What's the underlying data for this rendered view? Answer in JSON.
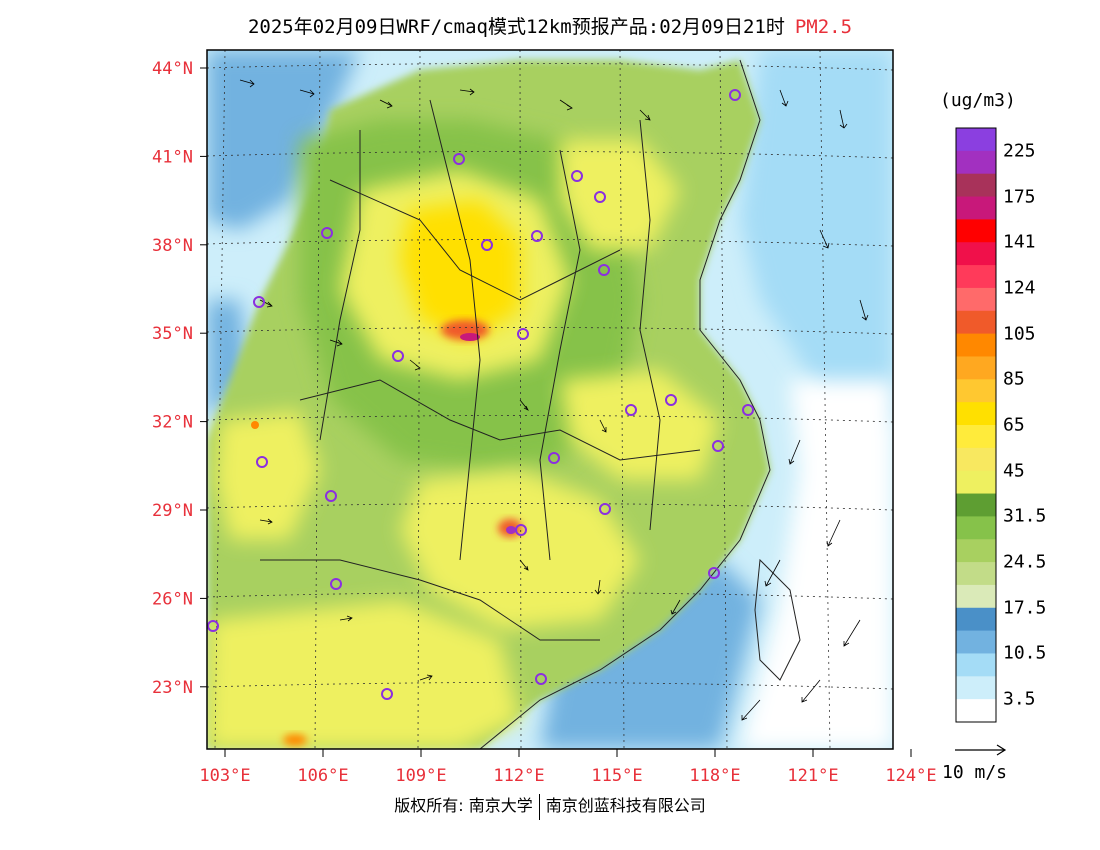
{
  "header": {
    "title": "2025年02月09日WRF/cmaq模式12km预报产品:02月09日21时",
    "species": "PM2.5"
  },
  "map": {
    "lat_ticks": [
      "44°N",
      "41°N",
      "38°N",
      "35°N",
      "32°N",
      "29°N",
      "26°N",
      "23°N"
    ],
    "lon_ticks": [
      "103°E",
      "106°E",
      "109°E",
      "112°E",
      "115°E",
      "118°E",
      "121°E",
      "124°E"
    ],
    "tick_color": "#e8303a"
  },
  "legend": {
    "units": "(ug/m3)",
    "colors": [
      "#8b3fe0",
      "#a230c0",
      "#a8325a",
      "#c8187a",
      "#ff0000",
      "#f0104a",
      "#ff3a5a",
      "#ff6a6a",
      "#f05a2a",
      "#ff8800",
      "#ffa820",
      "#ffc830",
      "#ffe000",
      "#ffeb3b",
      "#f8e860",
      "#eef060",
      "#5e9e32",
      "#86c24a",
      "#a8d060",
      "#c2dc88",
      "#daeab8",
      "#4a90c8",
      "#72b2e0",
      "#a4dcf6",
      "#cdeefa",
      "#ffffff"
    ],
    "labels": [
      "225",
      "175",
      "141",
      "124",
      "105",
      "85",
      "65",
      "45",
      "31.5",
      "24.5",
      "17.5",
      "10.5",
      "3.5"
    ]
  },
  "reference_vector": {
    "label": "10 m/s"
  },
  "footer": {
    "owner": "版权所有: 南京大学",
    "company": "南京创蓝科技有限公司"
  }
}
